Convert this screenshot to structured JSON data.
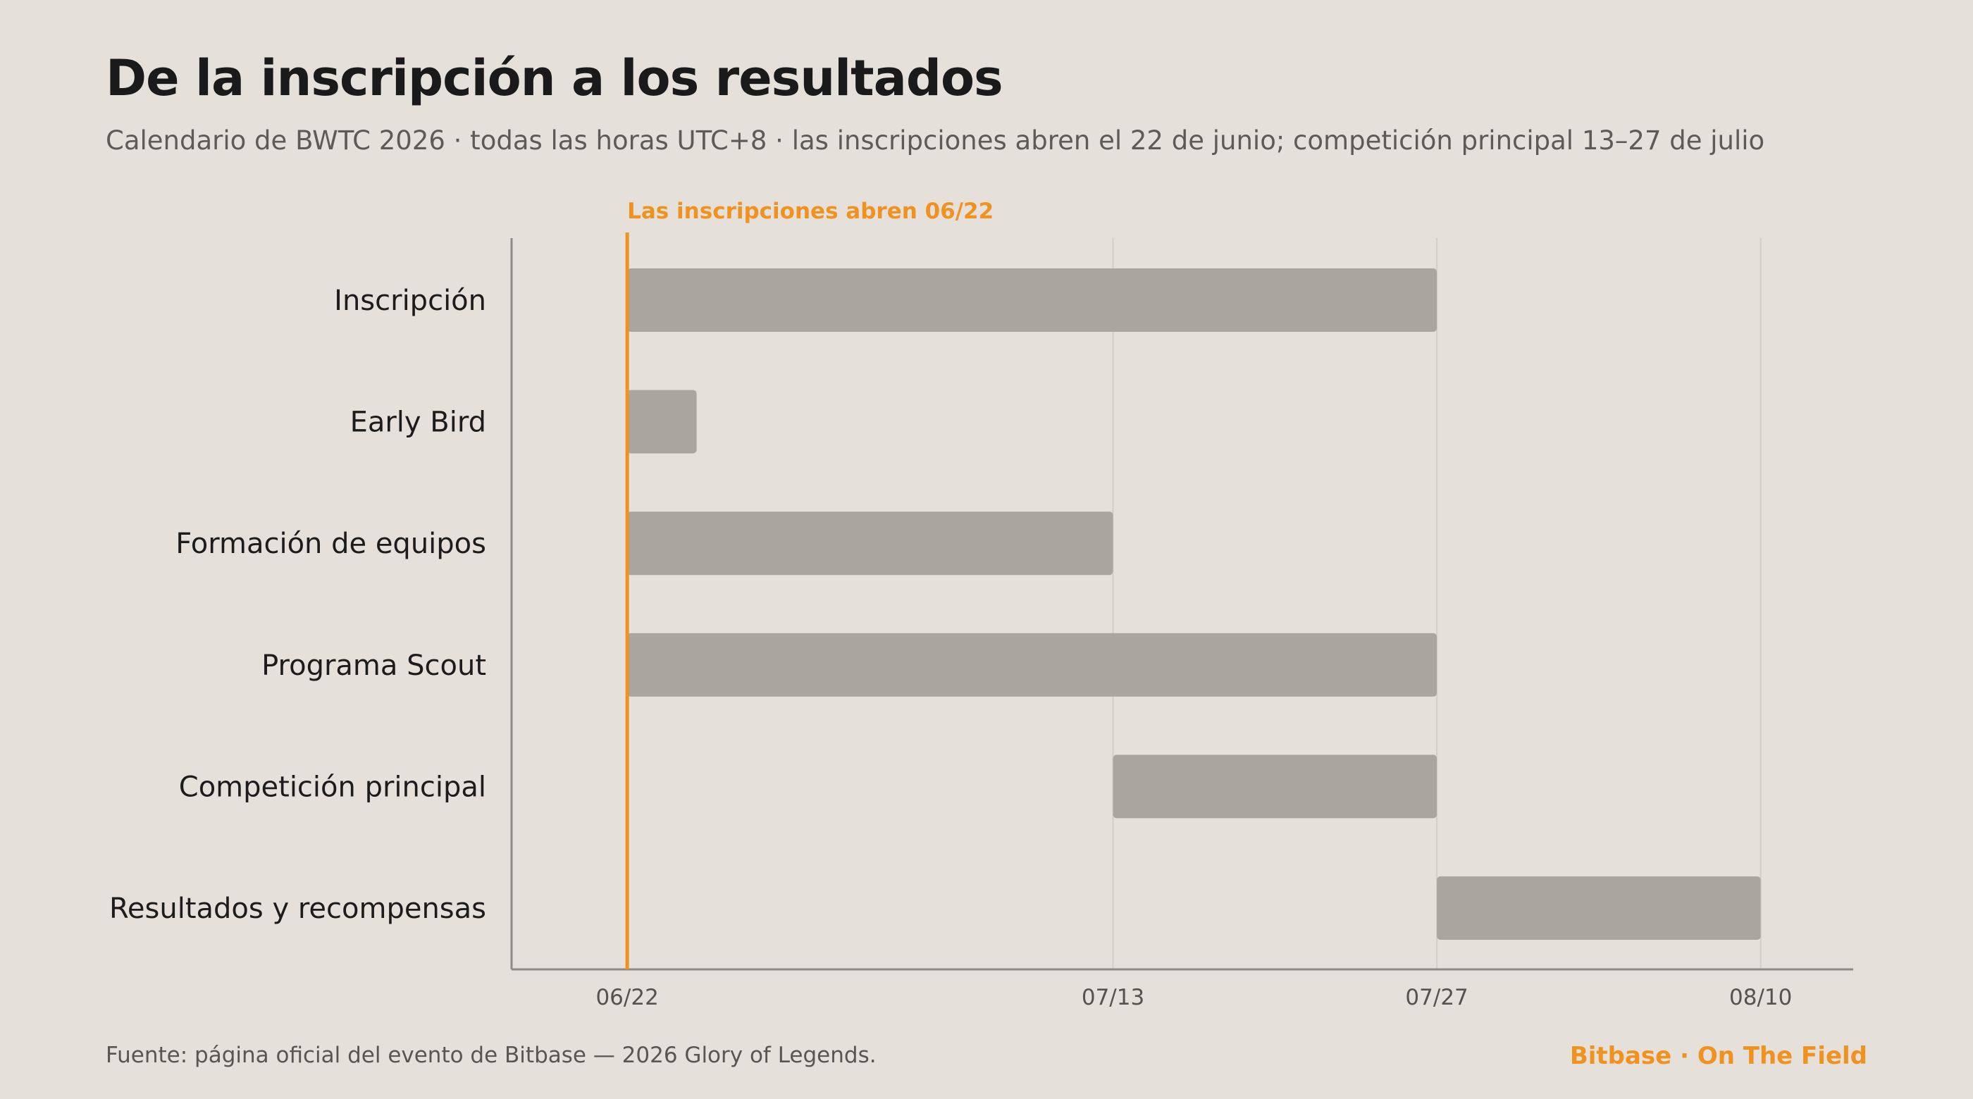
{
  "header": {
    "title": "De la inscripción a los resultados",
    "subtitle": "Calendario de BWTC 2026 · todas las horas UTC+8 · las inscripciones abren el 22 de junio; competición principal 13–27 de julio"
  },
  "footer": {
    "source": "Fuente: página oficial del evento de Bitbase — 2026 Glory of Legends.",
    "brand": "Bitbase · On The Field"
  },
  "colors": {
    "background": "#e5e0da",
    "bar": "#aaa59f",
    "accent": "#f0921f",
    "axis": "#8f8a85",
    "grid": "#d3cec8"
  },
  "chart_data": {
    "type": "gantt",
    "x_axis": {
      "type": "date",
      "range": [
        "2026-06-17",
        "2026-08-14"
      ],
      "ticks": [
        {
          "date": "2026-06-22",
          "label": "06/22"
        },
        {
          "date": "2026-07-13",
          "label": "07/13"
        },
        {
          "date": "2026-07-27",
          "label": "07/27"
        },
        {
          "date": "2026-08-10",
          "label": "08/10"
        }
      ]
    },
    "grid": "vertical",
    "tasks": [
      {
        "label": "Inscripción",
        "start": "2026-06-22",
        "end": "2026-07-27"
      },
      {
        "label": "Early Bird",
        "start": "2026-06-22",
        "end": "2026-06-25"
      },
      {
        "label": "Formación de equipos",
        "start": "2026-06-22",
        "end": "2026-07-13"
      },
      {
        "label": "Programa Scout",
        "start": "2026-06-22",
        "end": "2026-07-27"
      },
      {
        "label": "Competición principal",
        "start": "2026-07-13",
        "end": "2026-07-27"
      },
      {
        "label": "Resultados y recompensas",
        "start": "2026-07-27",
        "end": "2026-08-10"
      }
    ],
    "marker": {
      "date": "2026-06-22",
      "label": "Las inscripciones abren 06/22"
    }
  }
}
